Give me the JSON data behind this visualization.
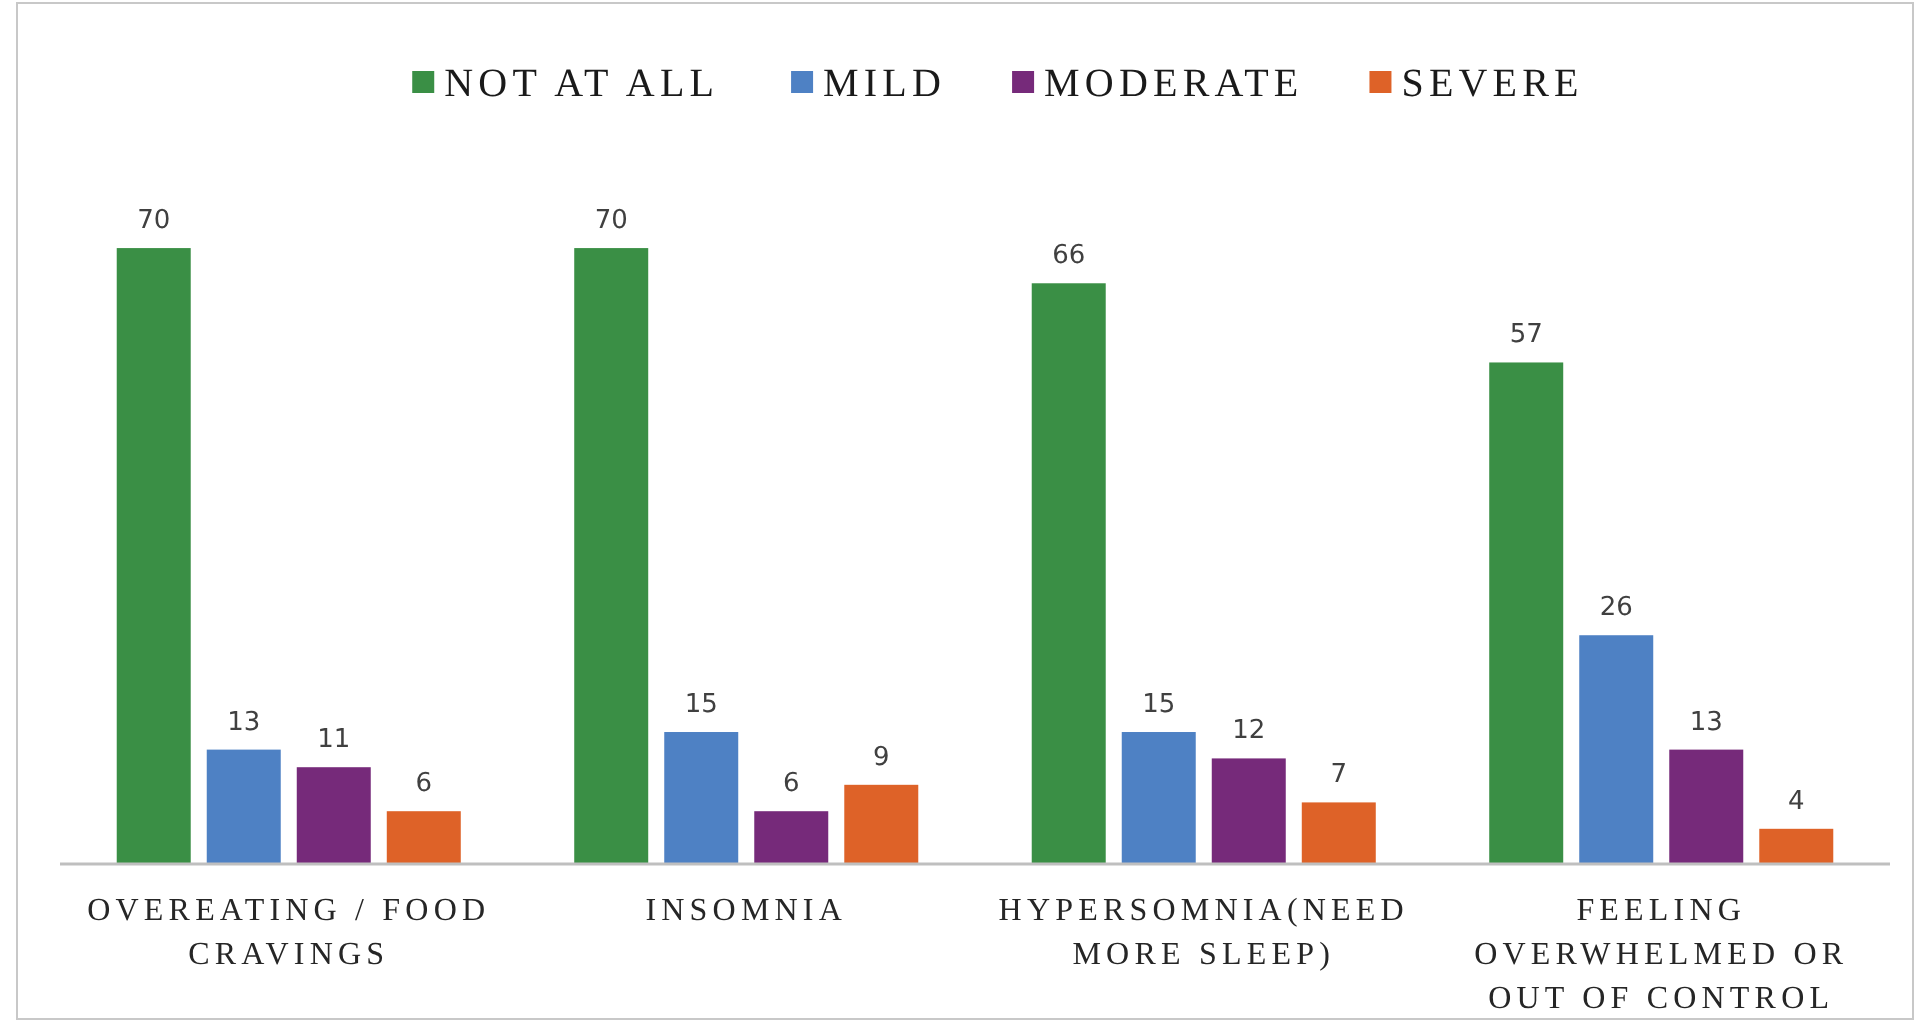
{
  "chart_data": {
    "type": "bar",
    "categories": [
      "OVEREATING / FOOD CRAVINGS",
      "INSOMNIA",
      "HYPERSOMNIA(NEED MORE SLEEP)",
      "FEELING OVERWHELMED OR OUT OF CONTROL"
    ],
    "series": [
      {
        "name": "NOT AT ALL",
        "color": "#3a8f45",
        "values": [
          70,
          70,
          66,
          57
        ]
      },
      {
        "name": "MILD",
        "color": "#4e81c4",
        "values": [
          13,
          15,
          15,
          26
        ]
      },
      {
        "name": "MODERATE",
        "color": "#762a7a",
        "values": [
          11,
          6,
          12,
          13
        ]
      },
      {
        "name": "SEVERE",
        "color": "#de6228",
        "values": [
          6,
          9,
          7,
          4
        ]
      }
    ],
    "data_labels": true,
    "legend": "top"
  }
}
